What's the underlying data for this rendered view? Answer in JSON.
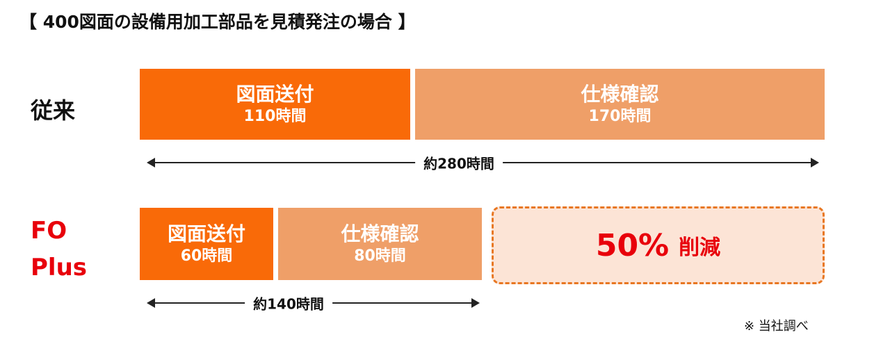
{
  "title": "【 400図面の設備用加工部品を見積発注の場合 】",
  "colors": {
    "drawing_send": "#f96a08",
    "spec_check": "#ef9f68",
    "highlight": "#e8000b",
    "box_bg": "#fce4d6",
    "box_border": "#e87722"
  },
  "rows": [
    {
      "label": "従来",
      "segments": [
        {
          "name": "図面送付",
          "value": "110時間",
          "hours": 110
        },
        {
          "name": "仕様確認",
          "value": "170時間",
          "hours": 170
        }
      ],
      "total": "約280時間"
    },
    {
      "label_line1": "FO",
      "label_line2": "Plus",
      "segments": [
        {
          "name": "図面送付",
          "value": "60時間",
          "hours": 60
        },
        {
          "name": "仕様確認",
          "value": "80時間",
          "hours": 80
        }
      ],
      "total": "約140時間"
    }
  ],
  "reduction": {
    "percent": "50%",
    "text": "削減"
  },
  "footnote": "※ 当社調べ"
}
